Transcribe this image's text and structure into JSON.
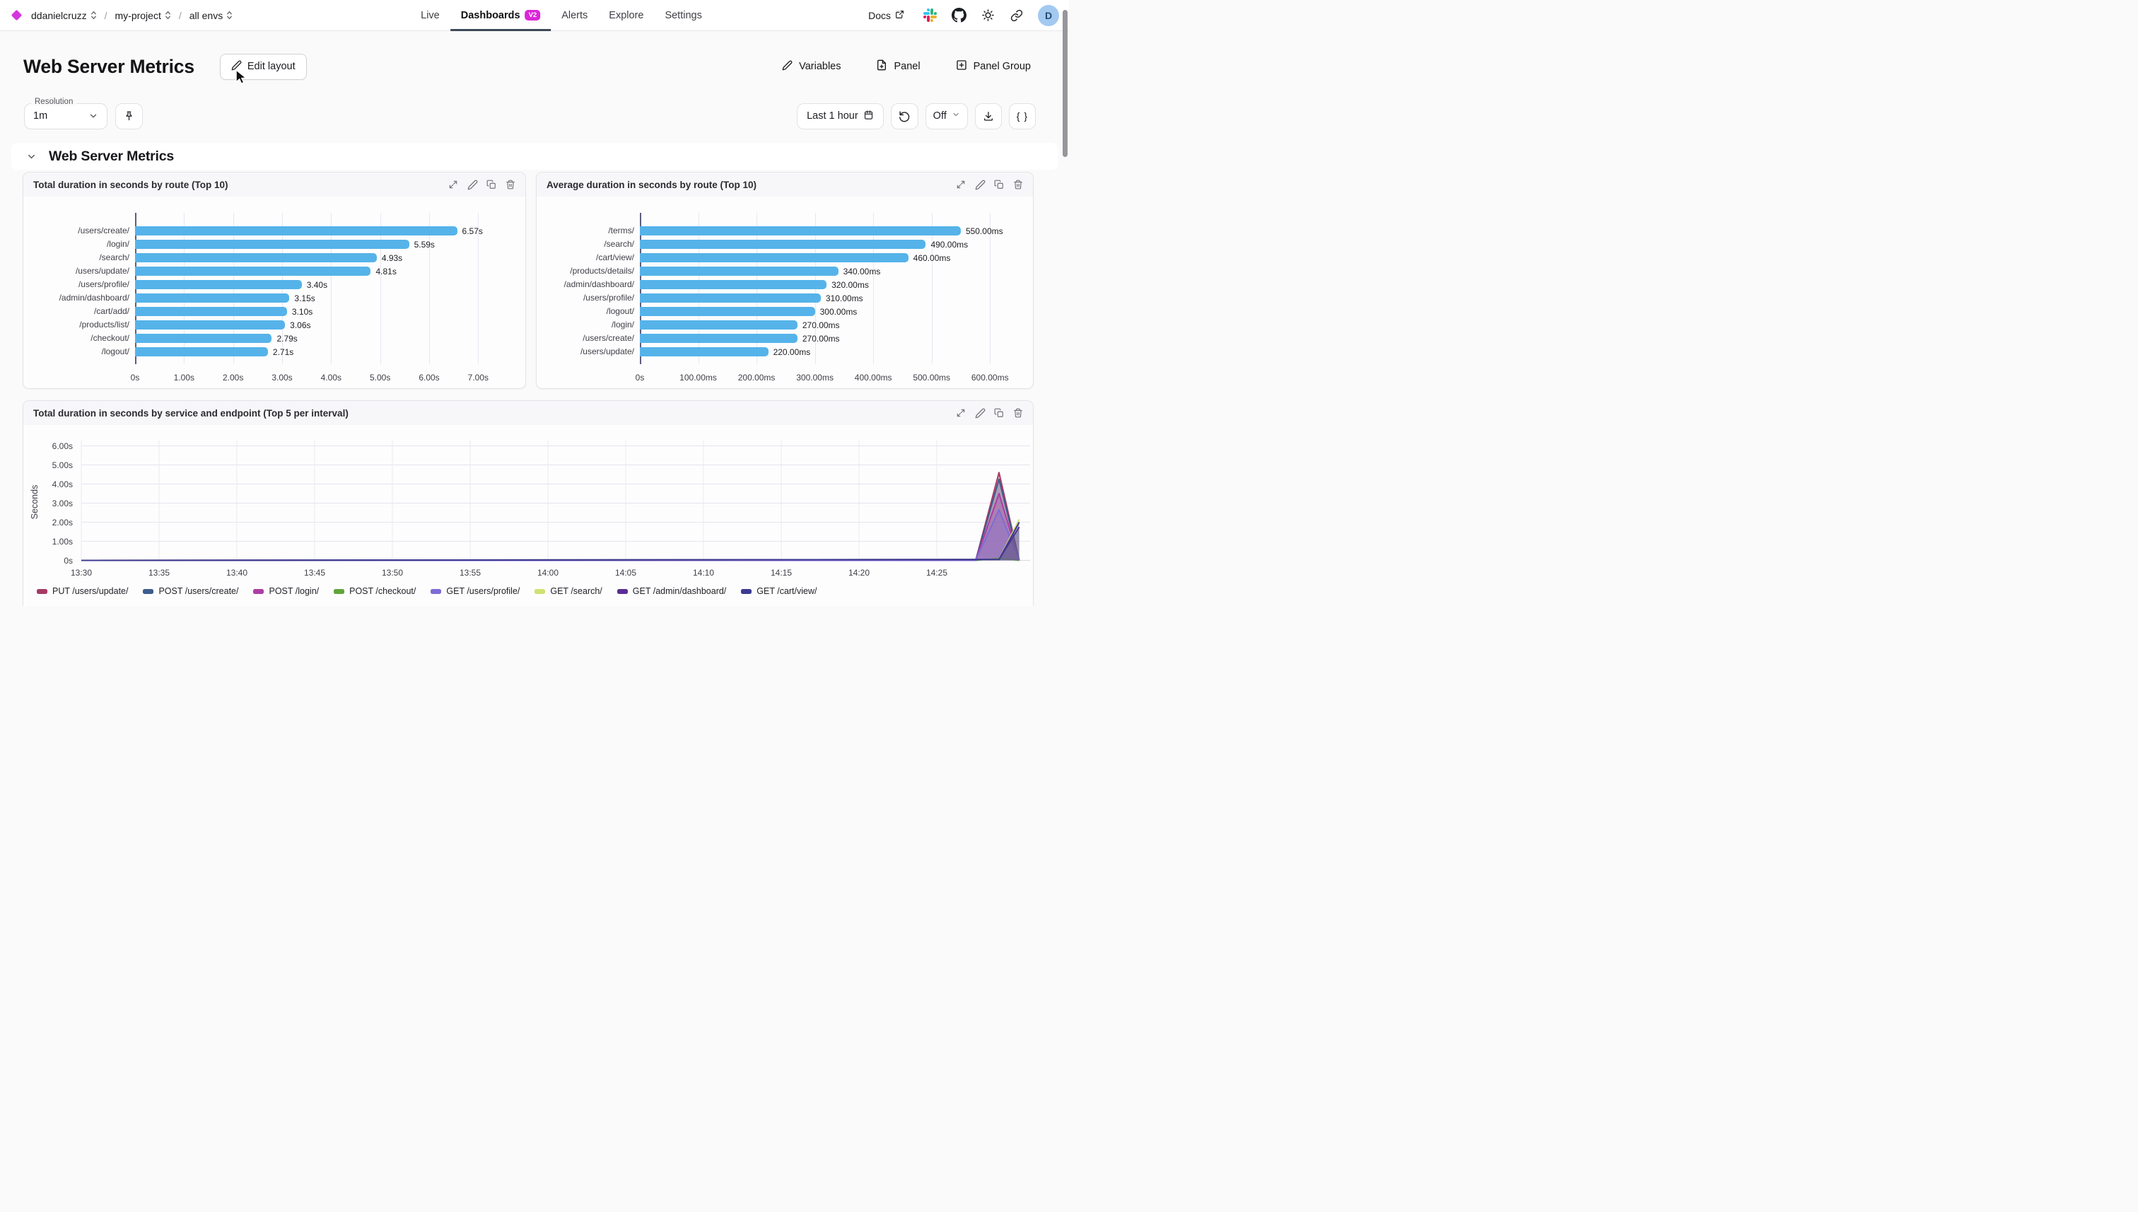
{
  "topbar": {
    "org": "ddanielcruzz",
    "project": "my-project",
    "environment": "all envs",
    "separator": "/",
    "nav": [
      {
        "label": "Live",
        "active": false
      },
      {
        "label": "Dashboards",
        "active": true,
        "badge": "V2"
      },
      {
        "label": "Alerts",
        "active": false
      },
      {
        "label": "Explore",
        "active": false
      },
      {
        "label": "Settings",
        "active": false
      }
    ],
    "docs_label": "Docs",
    "avatar_letter": "D"
  },
  "header": {
    "title": "Web Server Metrics",
    "edit_layout_label": "Edit layout",
    "variables_label": "Variables",
    "panel_label": "Panel",
    "panel_group_label": "Panel Group"
  },
  "toolbar": {
    "resolution_label": "Resolution",
    "resolution_value": "1m",
    "time_range_label": "Last 1 hour",
    "refresh_mode_label": "Off",
    "code_button_label": "{ }"
  },
  "section": {
    "title": "Web Server Metrics"
  },
  "colors": {
    "accent": "#da27d8",
    "bar_blue": "#55b3e9",
    "nav_underline": "#3d4958",
    "avatar_bg": "#a3c9f1"
  },
  "chart_data": [
    {
      "type": "bar",
      "orientation": "horizontal",
      "title": "Total duration in seconds by route (Top 10)",
      "categories": [
        "/users/create/",
        "/login/",
        "/search/",
        "/users/update/",
        "/users/profile/",
        "/admin/dashboard/",
        "/cart/add/",
        "/products/list/",
        "/checkout/",
        "/logout/"
      ],
      "values": [
        6.57,
        5.59,
        4.93,
        4.81,
        3.4,
        3.15,
        3.1,
        3.06,
        2.79,
        2.71
      ],
      "value_labels": [
        "6.57s",
        "5.59s",
        "4.93s",
        "4.81s",
        "3.40s",
        "3.15s",
        "3.10s",
        "3.06s",
        "2.79s",
        "2.71s"
      ],
      "x_tick_values": [
        0,
        1,
        2,
        3,
        4,
        5,
        6,
        7
      ],
      "x_tick_labels": [
        "0s",
        "1.00s",
        "2.00s",
        "3.00s",
        "4.00s",
        "5.00s",
        "6.00s",
        "7.00s"
      ],
      "x_axis_max": 7.5,
      "bar_color": "#55b3e9",
      "grid": true
    },
    {
      "type": "bar",
      "orientation": "horizontal",
      "title": "Average duration in seconds by route (Top 10)",
      "categories": [
        "/terms/",
        "/search/",
        "/cart/view/",
        "/products/details/",
        "/admin/dashboard/",
        "/users/profile/",
        "/logout/",
        "/login/",
        "/users/create/",
        "/users/update/"
      ],
      "values": [
        550,
        490,
        460,
        340,
        320,
        310,
        300,
        270,
        270,
        220
      ],
      "value_labels": [
        "550.00ms",
        "490.00ms",
        "460.00ms",
        "340.00ms",
        "320.00ms",
        "310.00ms",
        "300.00ms",
        "270.00ms",
        "270.00ms",
        "220.00ms"
      ],
      "x_tick_values": [
        0,
        100,
        200,
        300,
        400,
        500,
        600
      ],
      "x_tick_labels": [
        "0s",
        "100.00ms",
        "200.00ms",
        "300.00ms",
        "400.00ms",
        "500.00ms",
        "600.00ms"
      ],
      "x_axis_max": 630,
      "bar_color": "#55b3e9",
      "grid": true
    },
    {
      "type": "area",
      "title": "Total duration in seconds by service and endpoint (Top 5 per interval)",
      "ylabel": "Seconds",
      "y_tick_values": [
        0,
        1,
        2,
        3,
        4,
        5,
        6
      ],
      "y_tick_labels": [
        "0s",
        "1.00s",
        "2.00s",
        "3.00s",
        "4.00s",
        "5.00s",
        "6.00s"
      ],
      "ylim": [
        0,
        6.3
      ],
      "x_tick_minutes": [
        0,
        5,
        10,
        15,
        20,
        25,
        30,
        35,
        40,
        45,
        50,
        55
      ],
      "x_tick_labels": [
        "13:30",
        "13:35",
        "13:40",
        "13:45",
        "13:50",
        "13:55",
        "14:00",
        "14:05",
        "14:10",
        "14:15",
        "14:20",
        "14:25"
      ],
      "x_range_minutes": [
        0,
        61
      ],
      "legend_position": "bottom",
      "grid": true,
      "series": [
        {
          "name": "PUT /users/update/",
          "color": "#a73a63",
          "points": [
            [
              0,
              0
            ],
            [
              57.5,
              0
            ],
            [
              59,
              4.6
            ],
            [
              60.3,
              0
            ]
          ]
        },
        {
          "name": "POST /users/create/",
          "color": "#3e5c8d",
          "points": [
            [
              0,
              0
            ],
            [
              57.5,
              0
            ],
            [
              59,
              4.25
            ],
            [
              60.3,
              0
            ]
          ]
        },
        {
          "name": "POST /login/",
          "color": "#ad3da4",
          "points": [
            [
              0,
              0
            ],
            [
              57.5,
              0
            ],
            [
              59,
              3.5
            ],
            [
              60.3,
              0
            ]
          ]
        },
        {
          "name": "POST /checkout/",
          "color": "#61a43c",
          "points": [
            [
              0,
              0
            ],
            [
              57.5,
              0
            ],
            [
              59,
              0.12
            ],
            [
              60.3,
              0
            ]
          ]
        },
        {
          "name": "GET /users/profile/",
          "color": "#7e6cd6",
          "points": [
            [
              0,
              0
            ],
            [
              57.5,
              0
            ],
            [
              59,
              2.65
            ],
            [
              60.3,
              0
            ]
          ]
        },
        {
          "name": "GET /search/",
          "color": "#cfe273",
          "points": [
            [
              0,
              0
            ],
            [
              59,
              0.05
            ],
            [
              60.3,
              2.15
            ]
          ]
        },
        {
          "name": "GET /admin/dashboard/",
          "color": "#5a2e93",
          "points": [
            [
              0,
              0
            ],
            [
              59,
              0.05
            ],
            [
              60.3,
              1.75
            ]
          ]
        },
        {
          "name": "GET /cart/view/",
          "color": "#3c3a92",
          "points": [
            [
              0,
              0
            ],
            [
              59,
              0.05
            ],
            [
              60.3,
              2.0
            ]
          ]
        }
      ]
    }
  ]
}
